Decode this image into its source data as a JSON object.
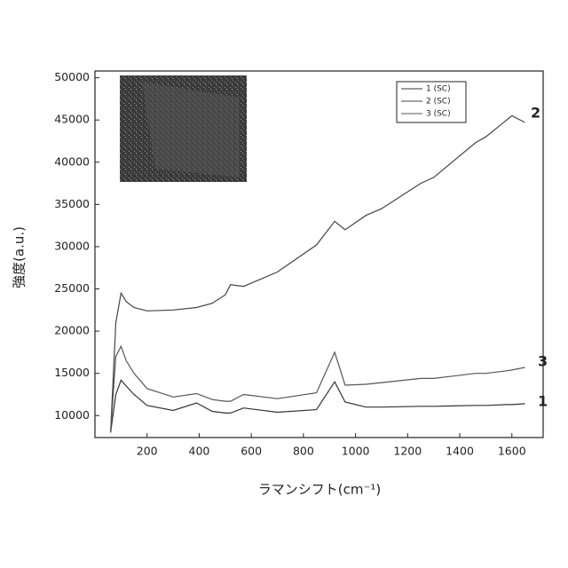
{
  "chart_data": {
    "type": "line",
    "x_label": "ラマンシフト(cm⁻¹)",
    "y_label": "強度(a.u.)",
    "x": [
      60,
      80,
      100,
      120,
      150,
      200,
      300,
      390,
      450,
      500,
      520,
      570,
      700,
      850,
      920,
      960,
      1040,
      1100,
      1250,
      1300,
      1460,
      1500,
      1580,
      1600,
      1650
    ],
    "series": [
      {
        "name": "1 (SC)",
        "color": "#333333",
        "values": [
          8000,
          12500,
          14200,
          13500,
          12500,
          11200,
          10600,
          11500,
          10500,
          10300,
          10300,
          10900,
          10400,
          10700,
          14000,
          11600,
          11000,
          11000,
          11100,
          11100,
          11200,
          11200,
          11300,
          11300,
          11400
        ]
      },
      {
        "name": "2 (SC)",
        "color": "#444444",
        "values": [
          8000,
          21000,
          24500,
          23500,
          22800,
          22400,
          22500,
          22800,
          23300,
          24300,
          25500,
          25300,
          27000,
          30200,
          33000,
          32000,
          33700,
          34500,
          37500,
          38200,
          42300,
          43000,
          45000,
          45500,
          44700
        ]
      },
      {
        "name": "3 (SC)",
        "color": "#555555",
        "values": [
          8000,
          17000,
          18200,
          16500,
          15000,
          13200,
          12200,
          12600,
          11900,
          11700,
          11700,
          12500,
          12000,
          12700,
          17500,
          13600,
          13700,
          13900,
          14400,
          14400,
          15000,
          15000,
          15300,
          15400,
          15700
        ]
      }
    ],
    "annotations": [
      "2",
      "3",
      "1"
    ],
    "xlim": [
      0,
      1720
    ],
    "ylim": [
      7400,
      50800
    ],
    "xticks": [
      200,
      400,
      600,
      800,
      1000,
      1200,
      1400,
      1600
    ],
    "yticks": [
      10000,
      15000,
      20000,
      25000,
      30000,
      35000,
      40000,
      45000,
      50000
    ],
    "grid": false
  }
}
